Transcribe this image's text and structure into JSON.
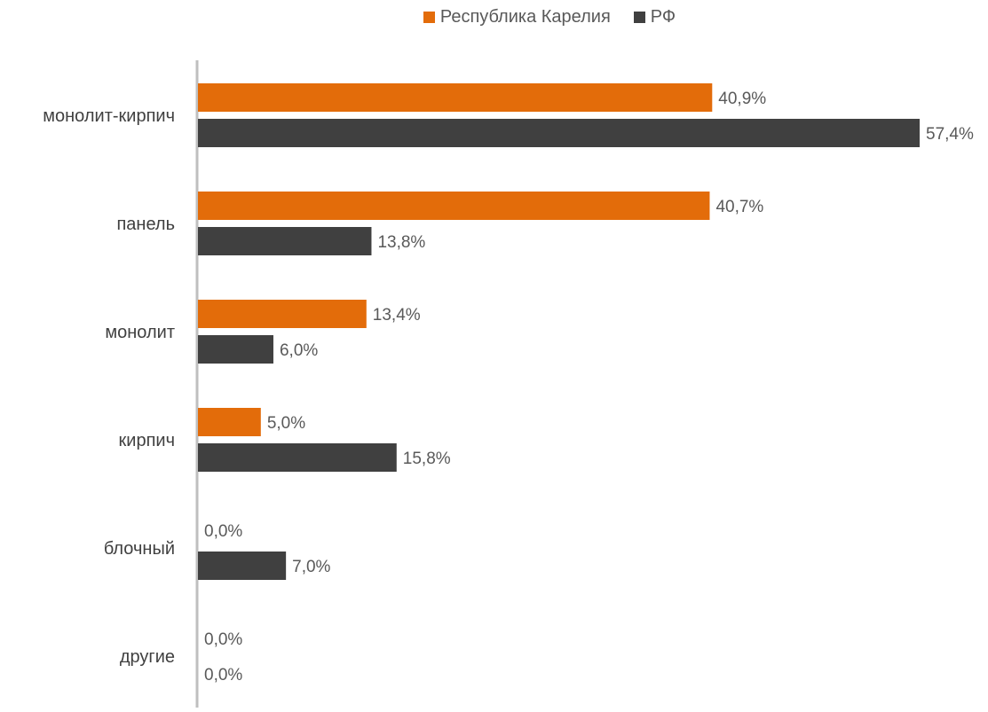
{
  "chart_data": {
    "type": "bar",
    "orientation": "horizontal",
    "categories": [
      "монолит-кирпич",
      "панель",
      "монолит",
      "кирпич",
      "блочный",
      "другие"
    ],
    "series": [
      {
        "name": "Республика Карелия",
        "color": "#E36C0A",
        "values": [
          40.9,
          40.7,
          13.4,
          5.0,
          0.0,
          0.0
        ],
        "labels": [
          "40,9%",
          "40,7%",
          "13,4%",
          "5,0%",
          "0,0%",
          "0,0%"
        ]
      },
      {
        "name": "РФ",
        "color": "#404040",
        "values": [
          57.4,
          13.8,
          6.0,
          15.8,
          7.0,
          0.0
        ],
        "labels": [
          "57,4%",
          "13,8%",
          "6,0%",
          "15,8%",
          "7,0%",
          "0,0%"
        ]
      }
    ],
    "title": "",
    "xlabel": "",
    "ylabel": "",
    "xlim": [
      0,
      60
    ],
    "grid": false,
    "legend_position": "top"
  }
}
